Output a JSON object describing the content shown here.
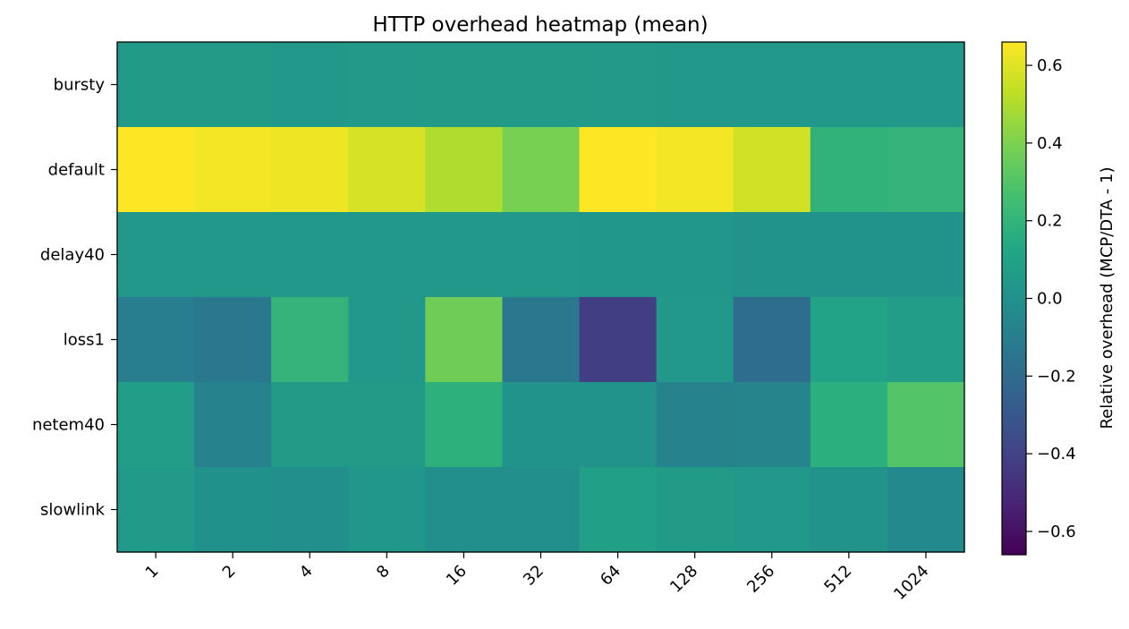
{
  "chart_data": {
    "type": "heatmap",
    "title": "HTTP overhead heatmap (mean)",
    "xlabel": "",
    "ylabel": "",
    "x_categories": [
      "1",
      "2",
      "4",
      "8",
      "16",
      "32",
      "64",
      "128",
      "256",
      "512",
      "1024"
    ],
    "y_categories": [
      "bursty",
      "default",
      "delay40",
      "loss1",
      "netem40",
      "slowlink"
    ],
    "values": [
      [
        0.06,
        0.06,
        0.04,
        0.05,
        0.06,
        0.06,
        0.05,
        0.04,
        0.04,
        0.04,
        0.04
      ],
      [
        0.66,
        0.64,
        0.63,
        0.58,
        0.5,
        0.39,
        0.66,
        0.64,
        0.57,
        0.19,
        0.2
      ],
      [
        0.04,
        0.04,
        0.04,
        0.04,
        0.04,
        0.04,
        0.03,
        0.03,
        0.01,
        0.01,
        0.01
      ],
      [
        -0.1,
        -0.13,
        0.2,
        0.04,
        0.37,
        -0.13,
        -0.42,
        0.04,
        -0.19,
        0.1,
        0.07
      ],
      [
        0.07,
        -0.08,
        0.06,
        0.06,
        0.18,
        0.01,
        0.01,
        -0.08,
        -0.07,
        0.17,
        0.3
      ],
      [
        0.05,
        0.0,
        -0.01,
        0.03,
        -0.01,
        -0.01,
        0.08,
        0.06,
        0.04,
        0.01,
        -0.04
      ]
    ],
    "vmin": -0.66,
    "vmax": 0.66,
    "colormap": "viridis",
    "colorbar": {
      "label": "Relative overhead (MCP/DTA - 1)",
      "ticks": [
        0.6,
        0.4,
        0.2,
        0.0,
        -0.2,
        -0.4,
        -0.6
      ],
      "tick_labels": [
        "0.6",
        "0.4",
        "0.2",
        "0.0",
        "−0.2",
        "−0.4",
        "−0.6"
      ]
    },
    "grid": false
  }
}
